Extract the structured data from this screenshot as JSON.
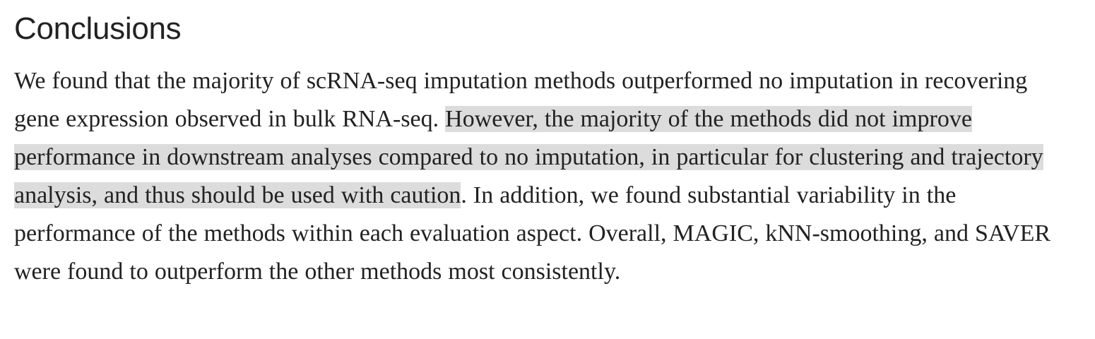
{
  "section": {
    "title": "Conclusions",
    "paragraph": {
      "before_highlight": "We found that the majority of scRNA-seq imputation methods outperformed no imputation in recovering gene expression observed in bulk RNA-seq. ",
      "highlight": "However, the majority of the methods did not improve performance in downstream analyses compared to no imputation, in particular for clustering and trajectory analysis, and thus should be used with caution",
      "after_highlight": ". In addition, we found substantial variability in the performance of the methods within each evaluation aspect. Overall, MAGIC, kNN-smoothing, and SAVER were found to outperform the other methods most consistently."
    }
  },
  "colors": {
    "text": "#222222",
    "highlight_background": "#dcdcdc",
    "page_background": "#ffffff"
  }
}
